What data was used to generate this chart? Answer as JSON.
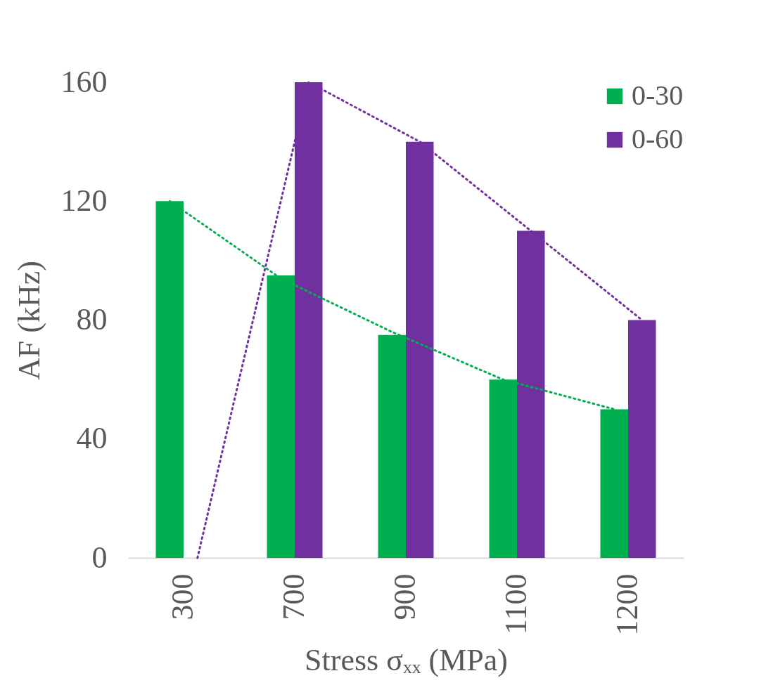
{
  "chart_data": {
    "type": "bar",
    "xlabel": "Stress σₓₓ (MPa)",
    "ylabel": "AF (kHz)",
    "categories": [
      "300",
      "700",
      "900",
      "1100",
      "1200"
    ],
    "series": [
      {
        "name": "0-30",
        "color": "#00b050",
        "values": [
          120,
          95,
          75,
          60,
          50
        ]
      },
      {
        "name": "0-60",
        "color": "#7030a0",
        "values": [
          0,
          160,
          140,
          110,
          80
        ]
      },
      {
        "type": "line",
        "color": "#00b050",
        "line_style": "dotted",
        "values": [
          120,
          94,
          76,
          60,
          50
        ]
      },
      {
        "type": "line",
        "color": "#7030a0",
        "line_style": "dotted",
        "values": [
          0,
          160,
          140,
          110,
          80
        ]
      }
    ],
    "ylim": [
      0,
      160
    ],
    "yticks": [
      0,
      40,
      80,
      120,
      160
    ],
    "grid": false,
    "legend": "top right"
  }
}
